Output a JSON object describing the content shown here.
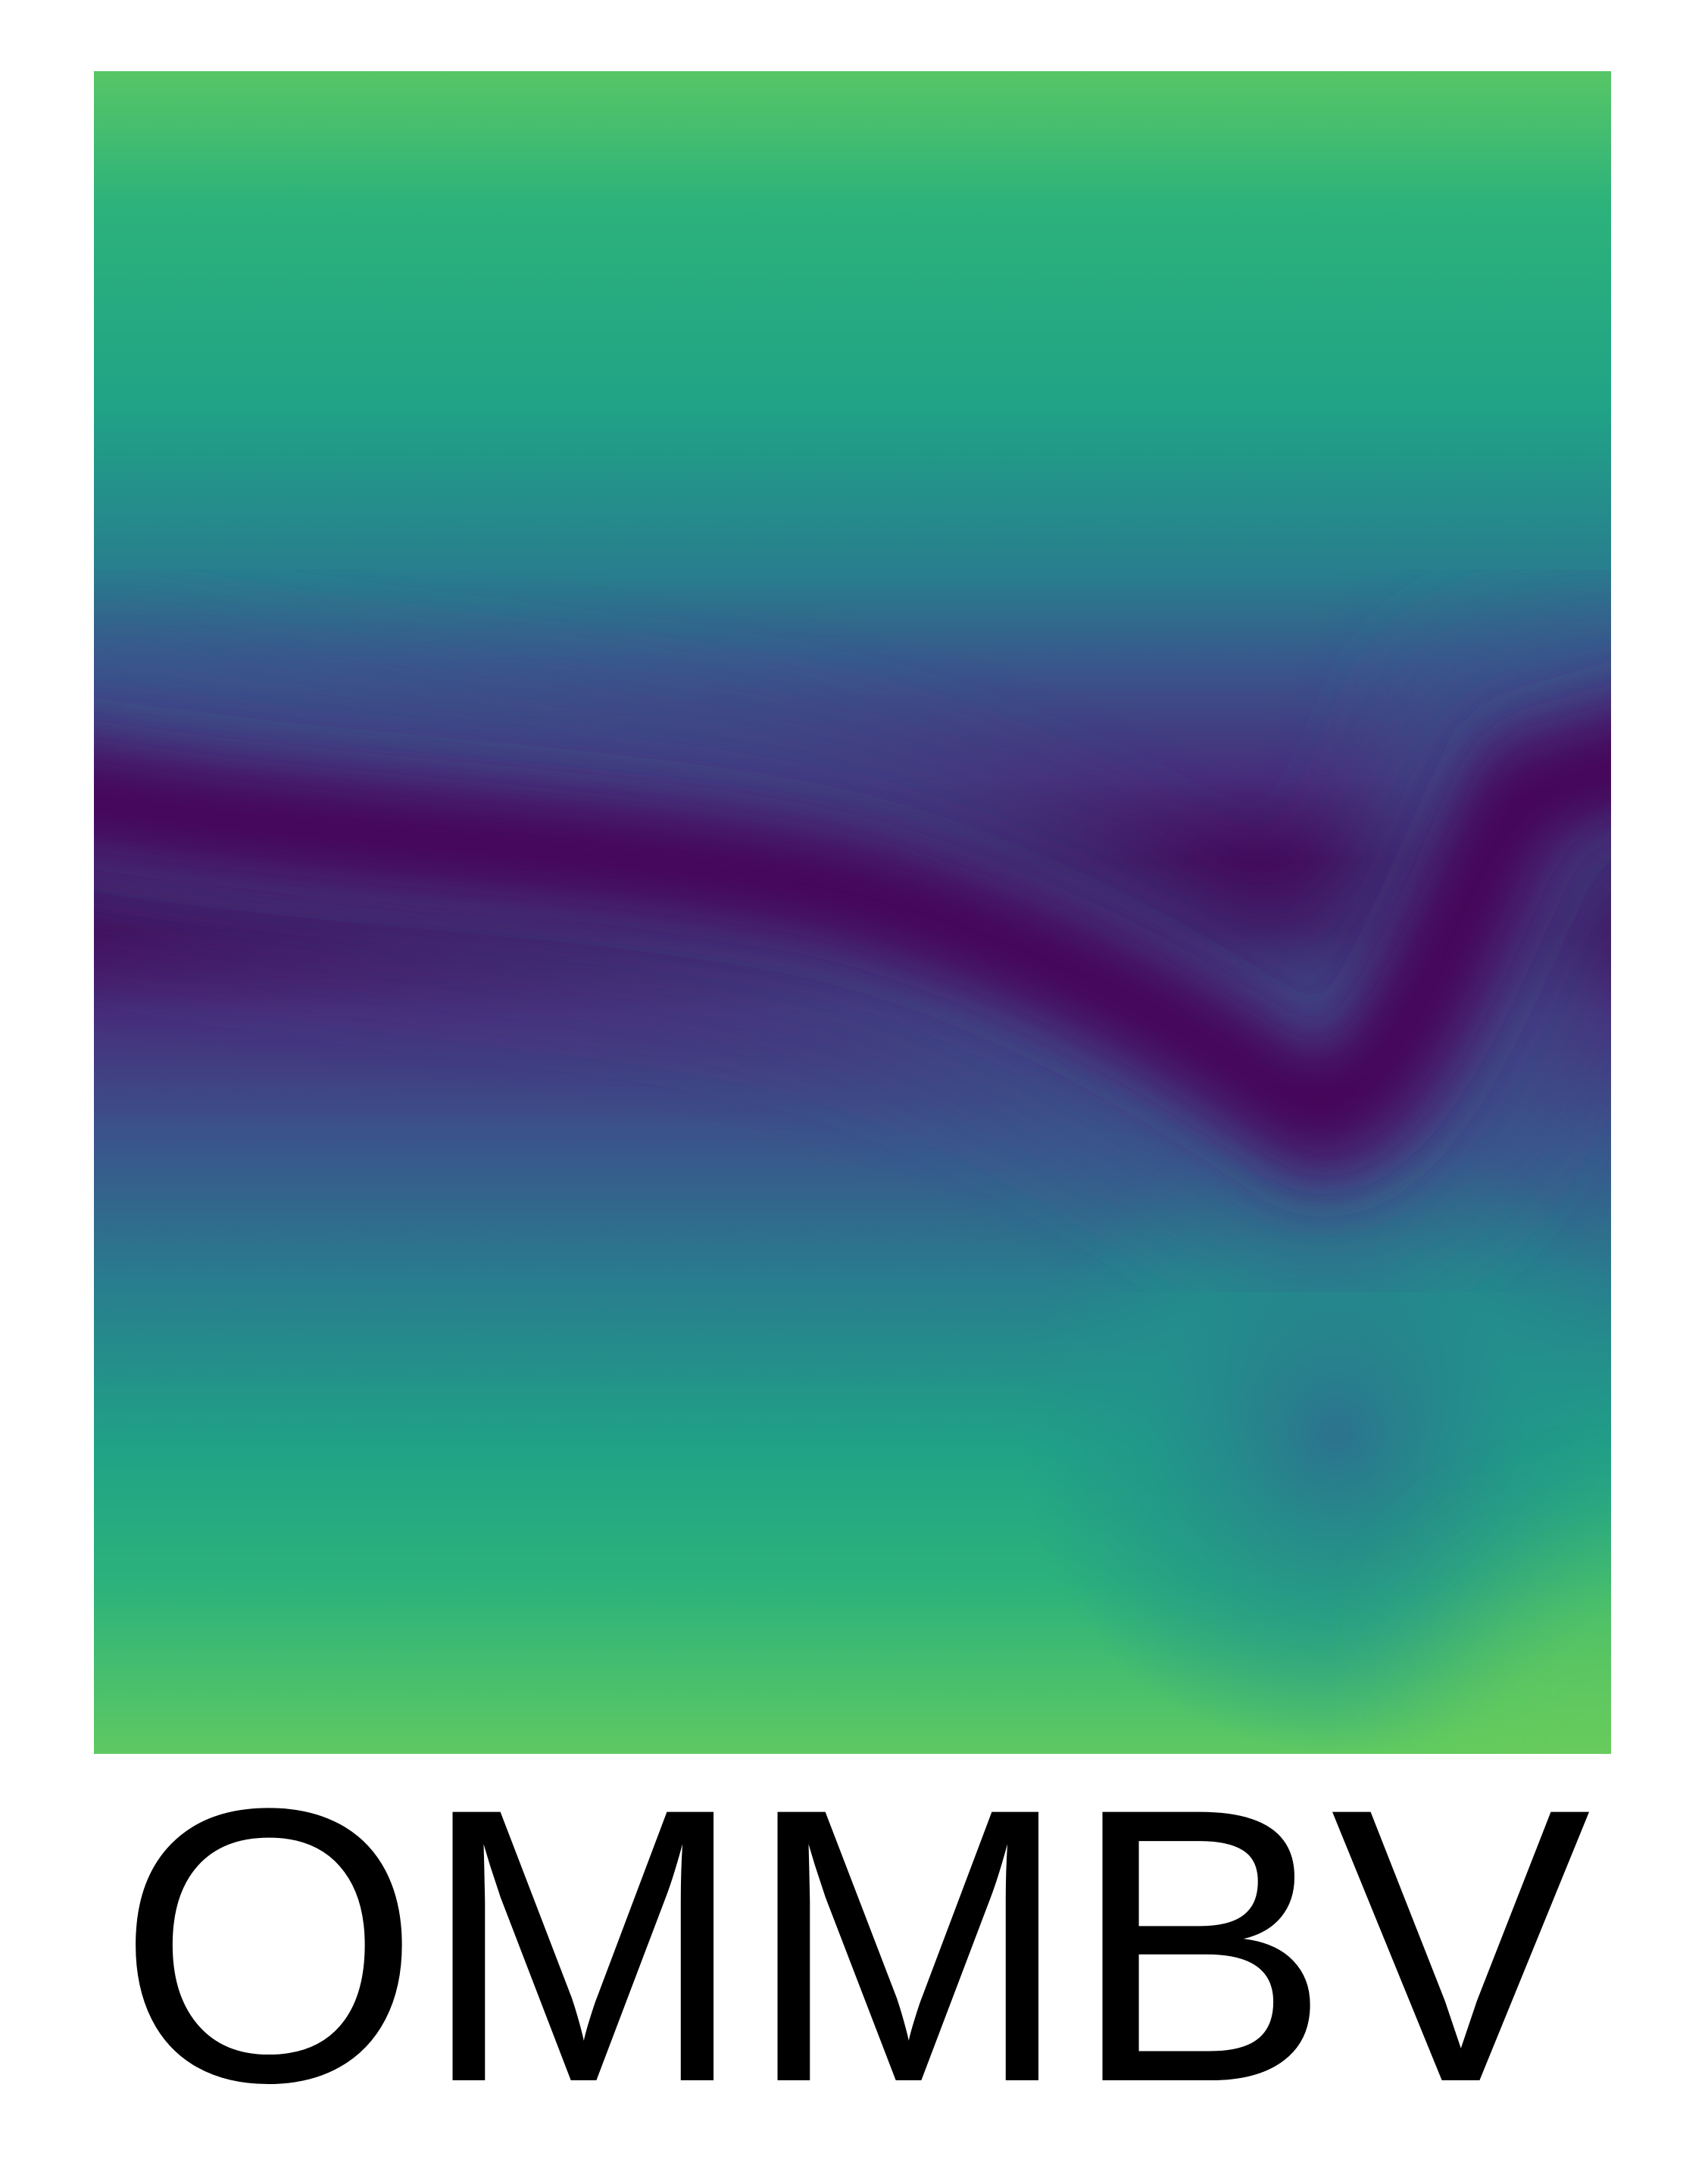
{
  "logo": {
    "wordmark": "OMMBV",
    "text_color": "#000000",
    "background_color": "#ffffff",
    "colormap": "viridis",
    "colormap_stops": [
      "#440154",
      "#46327e",
      "#365c8d",
      "#277f8e",
      "#1fa187",
      "#4ac16d",
      "#a0da39",
      "#fde725"
    ]
  }
}
